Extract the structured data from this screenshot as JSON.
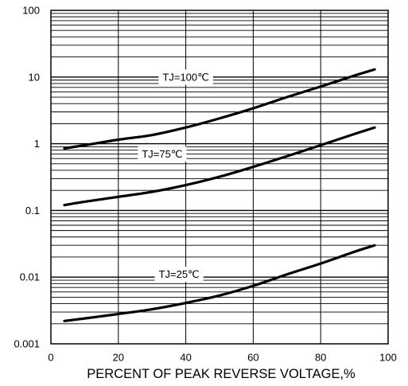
{
  "chart_data": {
    "type": "line",
    "title": "",
    "xlabel": "PERCENT OF PEAK REVERSE VOLTAGE,%",
    "ylabel": "",
    "xlim": [
      0,
      100
    ],
    "ylim": [
      0.001,
      100
    ],
    "yscale": "log",
    "grid": true,
    "x_ticks": [
      0,
      20,
      40,
      60,
      80,
      100
    ],
    "x_tick_labels": [
      "0",
      "20",
      "40",
      "60",
      "80",
      "100"
    ],
    "y_ticks": [
      0.001,
      0.01,
      0.1,
      1,
      10,
      100
    ],
    "y_tick_labels": [
      "0.001",
      "0.01",
      "0.1",
      "1",
      "10",
      "100"
    ],
    "line_color": "#000000",
    "series": [
      {
        "label": "TJ=100℃",
        "label_at": [
          40,
          10
        ],
        "x": [
          4,
          10,
          20,
          30,
          40,
          50,
          60,
          70,
          80,
          90,
          96
        ],
        "y": [
          0.85,
          0.95,
          1.15,
          1.35,
          1.75,
          2.4,
          3.4,
          5.0,
          7.2,
          10.5,
          13.0
        ]
      },
      {
        "label": "TJ=75℃",
        "label_at": [
          33,
          0.7
        ],
        "x": [
          4,
          10,
          20,
          30,
          40,
          50,
          60,
          70,
          80,
          90,
          96
        ],
        "y": [
          0.12,
          0.135,
          0.16,
          0.19,
          0.24,
          0.32,
          0.45,
          0.65,
          0.95,
          1.4,
          1.75
        ]
      },
      {
        "label": "TJ=25℃",
        "label_at": [
          38,
          0.011
        ],
        "x": [
          4,
          10,
          20,
          30,
          40,
          50,
          60,
          70,
          80,
          90,
          96
        ],
        "y": [
          0.0022,
          0.0024,
          0.0028,
          0.0033,
          0.0041,
          0.0053,
          0.0074,
          0.011,
          0.016,
          0.024,
          0.03
        ]
      }
    ]
  }
}
